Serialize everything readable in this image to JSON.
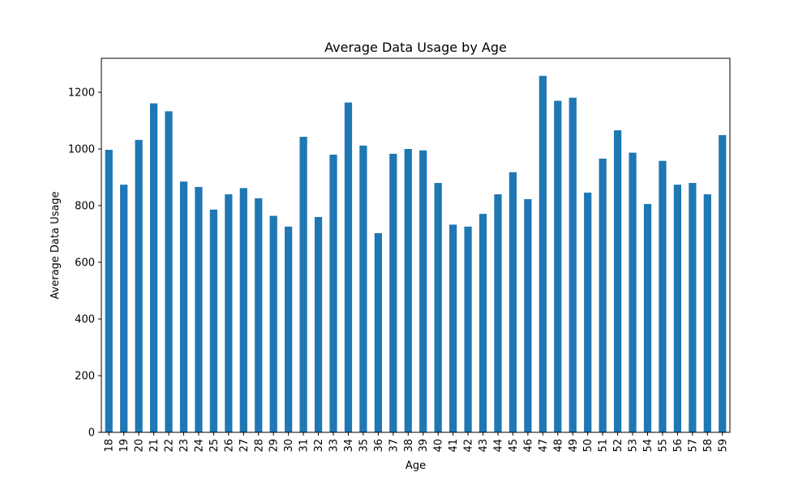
{
  "chart_data": {
    "type": "bar",
    "title": "Average Data Usage by Age",
    "xlabel": "Age",
    "ylabel": "Average Data Usage",
    "ylim": [
      0,
      1320
    ],
    "yticks": [
      0,
      200,
      400,
      600,
      800,
      1000,
      1200
    ],
    "grid": false,
    "bar_color": "#1f77b4",
    "categories": [
      "18",
      "19",
      "20",
      "21",
      "22",
      "23",
      "24",
      "25",
      "26",
      "27",
      "28",
      "29",
      "30",
      "31",
      "32",
      "33",
      "34",
      "35",
      "36",
      "37",
      "38",
      "39",
      "40",
      "41",
      "42",
      "43",
      "44",
      "45",
      "46",
      "47",
      "48",
      "49",
      "50",
      "51",
      "52",
      "53",
      "54",
      "55",
      "56",
      "57",
      "58",
      "59"
    ],
    "values": [
      997,
      874,
      1032,
      1161,
      1133,
      885,
      866,
      786,
      840,
      862,
      826,
      764,
      726,
      1043,
      760,
      980,
      1164,
      1012,
      703,
      983,
      1000,
      995,
      880,
      733,
      726,
      771,
      840,
      918,
      823,
      1258,
      1170,
      1181,
      846,
      966,
      1066,
      987,
      806,
      958,
      874,
      880,
      840,
      1049
    ]
  }
}
